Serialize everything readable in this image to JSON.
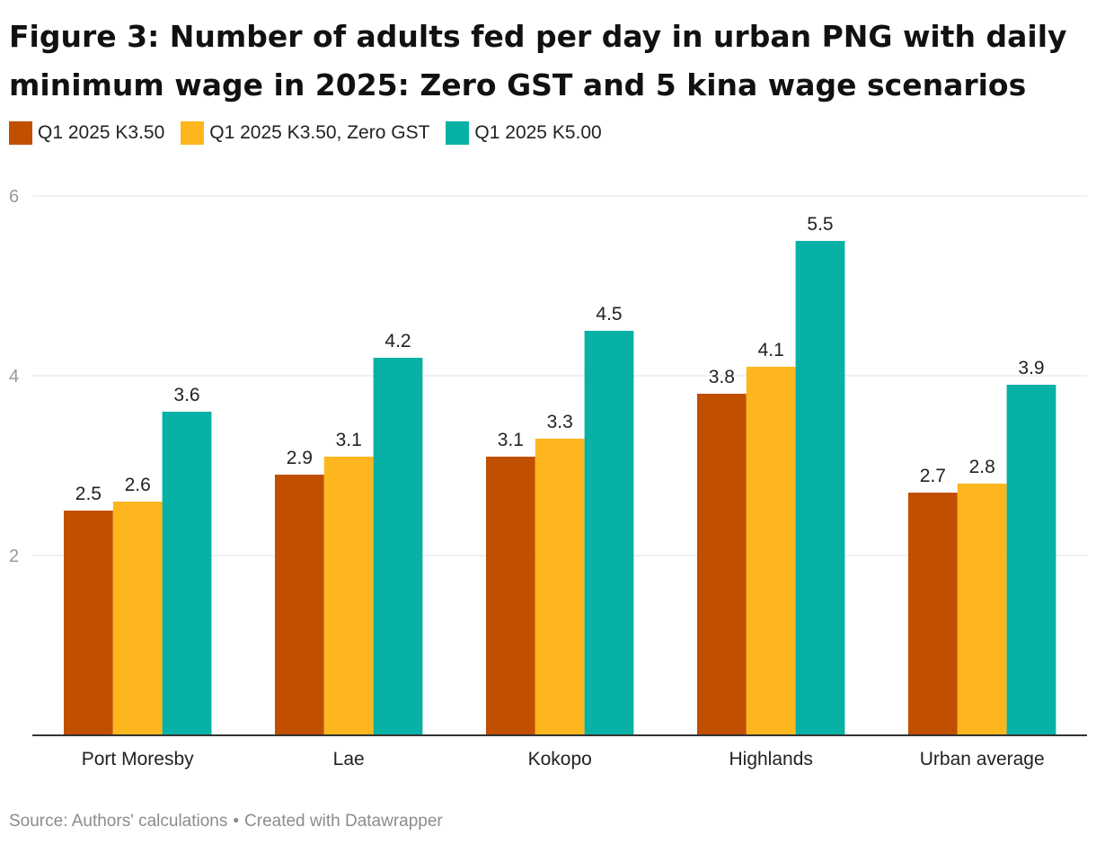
{
  "chart_data": {
    "type": "bar",
    "title": "Figure 3: Number of adults fed per day in urban PNG with daily minimum wage in 2025: Zero GST and 5 kina wage scenarios",
    "title_lines": [
      "Figure 3: Number of adults fed per day in urban PNG with daily",
      "minimum wage in 2025: Zero GST and 5 kina wage scenarios"
    ],
    "categories": [
      "Port Moresby",
      "Lae",
      "Kokopo",
      "Highlands",
      "Urban average"
    ],
    "series": [
      {
        "name": "Q1 2025 K3.50",
        "color": "#c05000",
        "values": [
          2.5,
          2.9,
          3.1,
          3.8,
          2.7
        ]
      },
      {
        "name": "Q1 2025 K3.50, Zero GST",
        "color": "#fdb61e",
        "values": [
          2.6,
          3.1,
          3.3,
          4.1,
          2.8
        ]
      },
      {
        "name": "Q1 2025 K5.00",
        "color": "#08b1a5",
        "values": [
          3.6,
          4.2,
          4.5,
          5.5,
          3.9
        ]
      }
    ],
    "ylim": [
      0,
      6
    ],
    "yticks": [
      2,
      4,
      6
    ],
    "xlabel": "",
    "ylabel": "",
    "grid": true,
    "legend": "top-left"
  },
  "footer": {
    "source": "Source: Authors' calculations",
    "separator": "•",
    "credit": "Created with Datawrapper"
  }
}
